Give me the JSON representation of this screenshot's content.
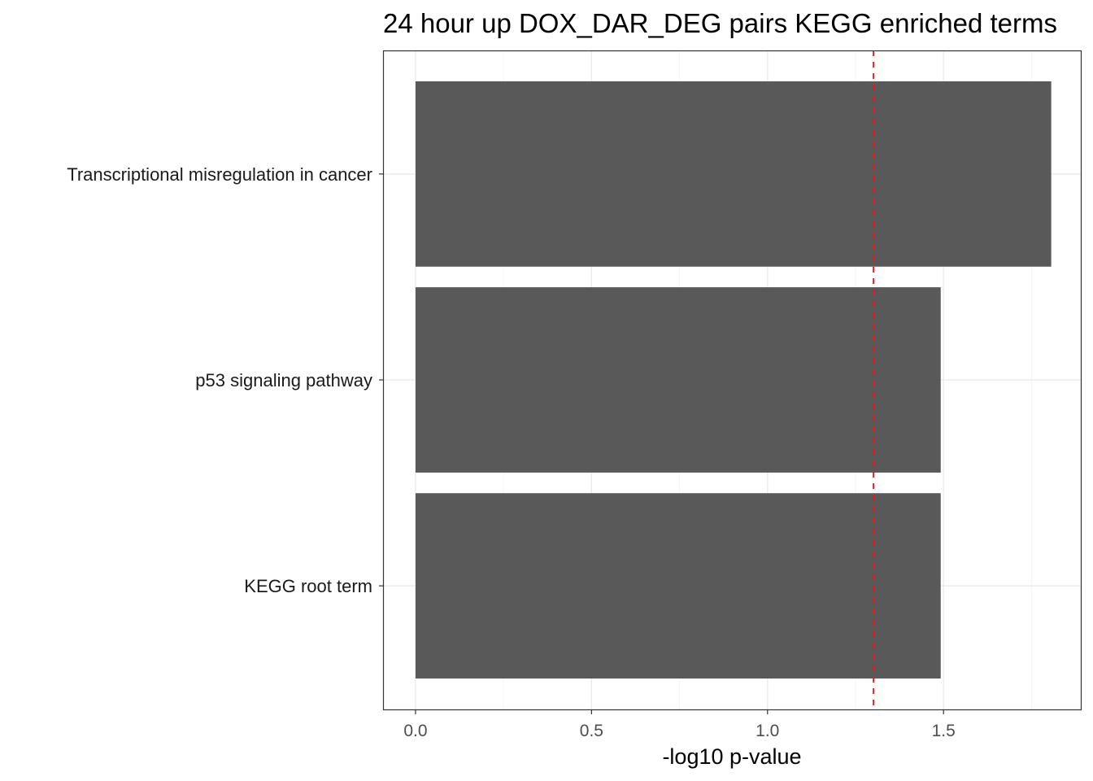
{
  "chart_data": {
    "type": "bar",
    "orientation": "horizontal",
    "title": "24 hour up DOX_DAR_DEG pairs  KEGG enriched terms",
    "xlabel": "-log10 p-value",
    "ylabel": "",
    "categories": [
      "Transcriptional misregulation in cancer",
      "p53 signaling pathway",
      "KEGG root term"
    ],
    "values": [
      1.806,
      1.492,
      1.492
    ],
    "xlim": [
      -0.09,
      1.89
    ],
    "xticks": [
      0.0,
      0.5,
      1.0,
      1.5
    ],
    "xtick_labels": [
      "0.0",
      "0.5",
      "1.0",
      "1.5"
    ],
    "threshold_line": 1.301,
    "grid": true,
    "legend": "none",
    "colors": {
      "bar": "#595959",
      "threshold": "#e41a1c",
      "grid": "#ebebeb",
      "panel_border": "#333333"
    }
  }
}
